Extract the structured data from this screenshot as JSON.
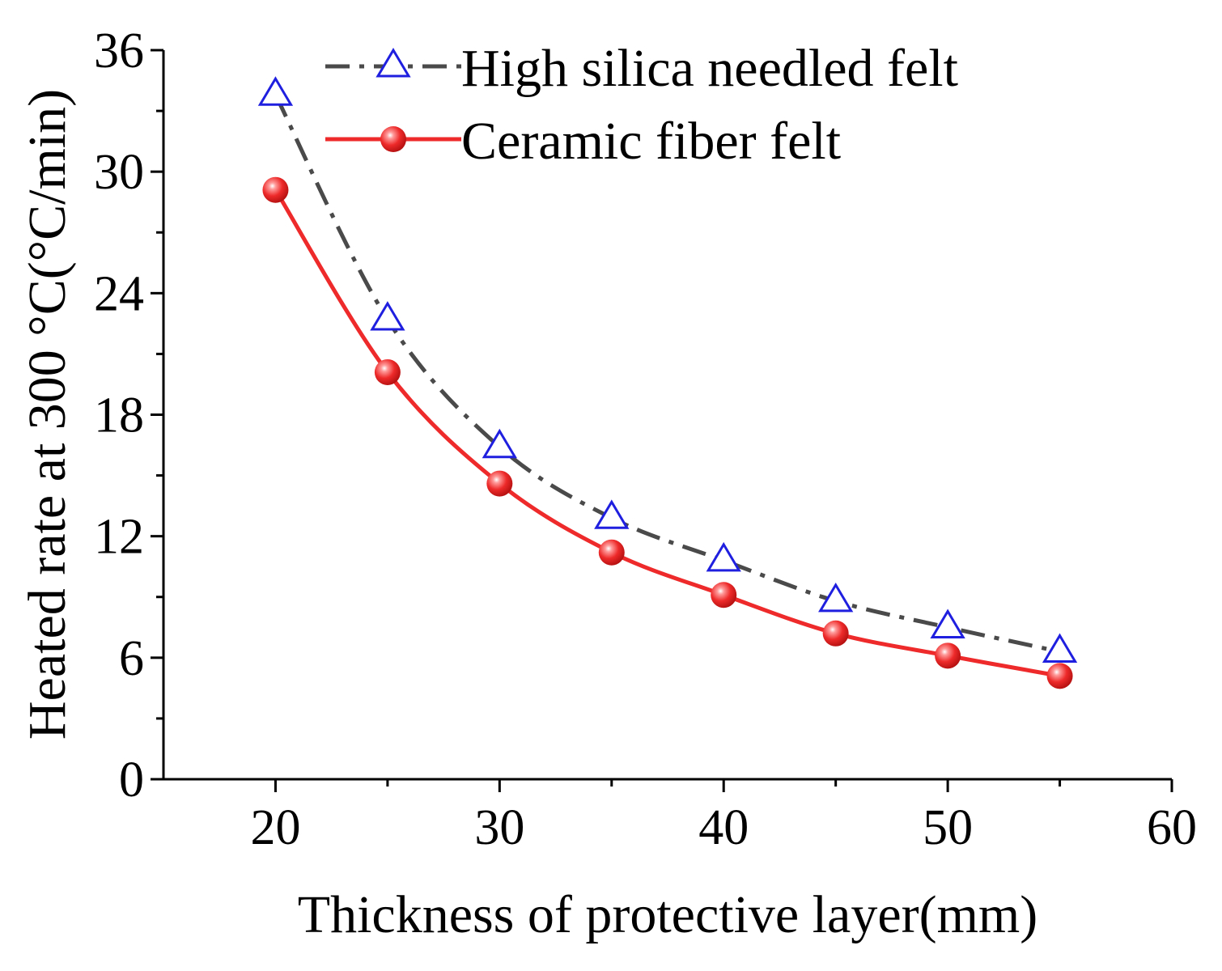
{
  "chart_data": {
    "type": "line",
    "title": "",
    "xlabel": "Thickness of protective layer(mm)",
    "ylabel": "Heated rate at 300 °C(°C/min)",
    "xlim": [
      15,
      60
    ],
    "ylim": [
      0,
      36
    ],
    "xticks": [
      20,
      30,
      40,
      50,
      60
    ],
    "yticks": [
      0,
      6,
      12,
      18,
      24,
      30,
      36
    ],
    "x": [
      20,
      25,
      30,
      35,
      40,
      45,
      50,
      55
    ],
    "grid": false,
    "legend_position": "top-right",
    "series": [
      {
        "name": "High silica needled felt",
        "values": [
          33.8,
          22.7,
          16.4,
          12.9,
          10.8,
          8.8,
          7.5,
          6.3
        ],
        "color": "#4a4a4a",
        "marker_color": "#1f1fe0",
        "line_style": "dash-dot",
        "marker": "open-triangle"
      },
      {
        "name": "Ceramic fiber felt",
        "values": [
          29.1,
          20.1,
          14.6,
          11.2,
          9.1,
          7.2,
          6.1,
          5.1
        ],
        "color": "#ee2a2a",
        "marker_color": "#ee2a2a",
        "line_style": "solid",
        "marker": "filled-circle"
      }
    ]
  }
}
